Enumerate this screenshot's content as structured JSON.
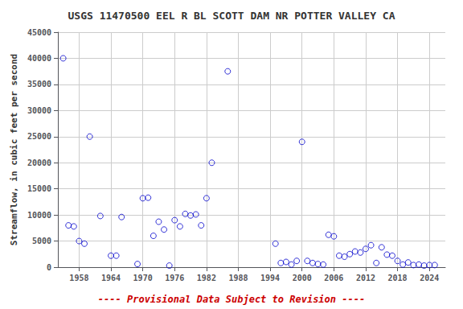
{
  "chart_data": {
    "type": "scatter",
    "title": "USGS 11470500 EEL R BL SCOTT DAM NR POTTER VALLEY CA",
    "ylabel": "Streamflow, in cubic feet per second",
    "annotations": [
      "---- Provisional Data Subject to Revision ----"
    ],
    "x": [
      1955,
      1956,
      1957,
      1958,
      1959,
      1960,
      1962,
      1964,
      1965,
      1966,
      1969,
      1970,
      1971,
      1972,
      1973,
      1974,
      1975,
      1976,
      1977,
      1978,
      1979,
      1980,
      1981,
      1982,
      1983,
      1986,
      1995,
      1996,
      1997,
      1998,
      1999,
      2000,
      2001,
      2002,
      2003,
      2004,
      2005,
      2006,
      2007,
      2008,
      2009,
      2010,
      2011,
      2012,
      2013,
      2014,
      2015,
      2016,
      2017,
      2018,
      2019,
      2020,
      2021,
      2022,
      2023,
      2024,
      2025
    ],
    "values": [
      40000,
      8000,
      7800,
      5000,
      4500,
      25000,
      9800,
      2200,
      2200,
      9600,
      600,
      13200,
      13300,
      6000,
      8700,
      7200,
      300,
      9000,
      7800,
      10200,
      9900,
      10100,
      8000,
      13200,
      20000,
      37500,
      4500,
      800,
      1000,
      500,
      1200,
      24000,
      1200,
      800,
      600,
      500,
      6200,
      5900,
      2200,
      2000,
      2500,
      3000,
      2800,
      3500,
      4200,
      800,
      3800,
      2400,
      2200,
      1200,
      500,
      900,
      400,
      500,
      300,
      400,
      400
    ],
    "color": "#0000cc",
    "marker": "circle",
    "xlim": [
      1954,
      2027
    ],
    "xticks": [
      1958,
      1964,
      1970,
      1976,
      1982,
      1988,
      1994,
      2000,
      2006,
      2012,
      2018,
      2024
    ],
    "ylim": [
      0,
      45000
    ],
    "yticks": [
      0,
      5000,
      10000,
      15000,
      20000,
      25000,
      30000,
      35000,
      40000,
      45000
    ],
    "grid": true
  }
}
